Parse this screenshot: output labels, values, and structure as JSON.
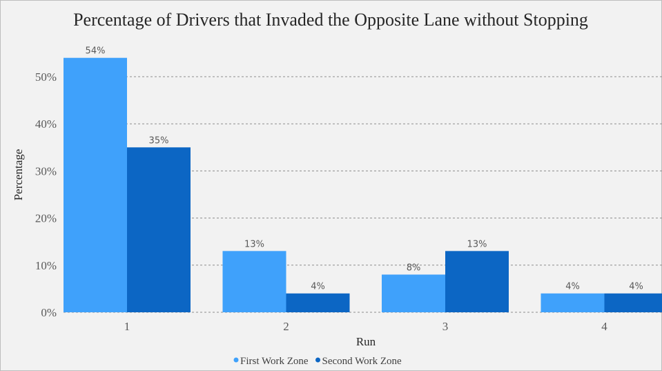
{
  "chart_data": {
    "type": "bar",
    "title": "Percentage of Drivers that Invaded the Opposite Lane without Stopping",
    "xlabel": "Run",
    "ylabel": "Percentage",
    "categories": [
      "1",
      "2",
      "3",
      "4"
    ],
    "series": [
      {
        "name": "First Work Zone",
        "values": [
          54,
          13,
          8,
          4
        ],
        "labels": [
          "54%",
          "13%",
          "8%",
          "4%"
        ],
        "color": "#3fa1fb"
      },
      {
        "name": "Second Work Zone",
        "values": [
          35,
          4,
          13,
          4
        ],
        "labels": [
          "35%",
          "4%",
          "13%",
          "4%"
        ],
        "color": "#0c66c4"
      }
    ],
    "ylim": [
      0,
      55
    ],
    "yticks": [
      0,
      10,
      20,
      30,
      40,
      50
    ],
    "ytick_labels": [
      "0%",
      "10%",
      "20%",
      "30%",
      "40%",
      "50%"
    ],
    "grid": true,
    "legend_position": "bottom"
  }
}
